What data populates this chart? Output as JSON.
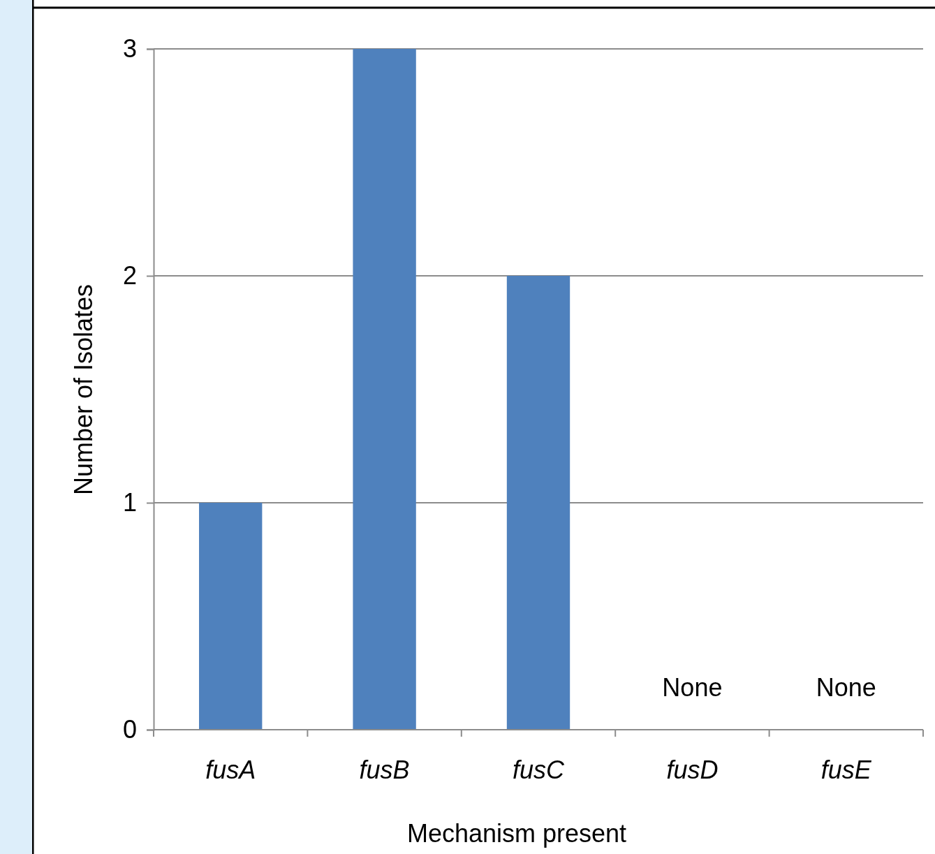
{
  "chart_data": {
    "type": "bar",
    "xlabel": "Mechanism present",
    "ylabel": "Number of Isolates",
    "categories": [
      "fusA",
      "fusB",
      "fusC",
      "fusD",
      "fusE"
    ],
    "values": [
      1,
      3,
      2,
      0,
      0
    ],
    "color": "#4f81bd",
    "value_labels": [
      null,
      null,
      null,
      "None",
      "None"
    ],
    "ylim": [
      0,
      3
    ],
    "yticks": [
      0,
      1,
      2,
      3
    ],
    "grid": "y"
  }
}
